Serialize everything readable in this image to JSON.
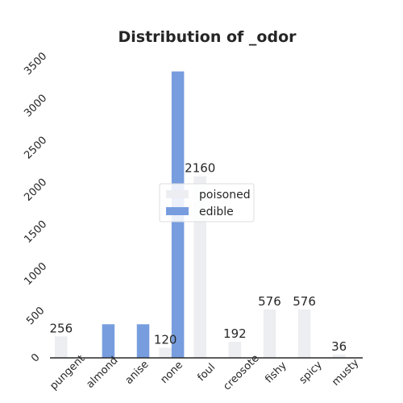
{
  "chart_data": {
    "type": "bar",
    "title": "Distribution of _odor",
    "xlabel": "",
    "ylabel": "",
    "categories": [
      "pungent",
      "almond",
      "anise",
      "none",
      "foul",
      "creosote",
      "fishy",
      "spicy",
      "musty"
    ],
    "series": [
      {
        "name": "poisoned",
        "color": "#eceef1",
        "values": [
          256,
          0,
          0,
          120,
          2160,
          192,
          576,
          576,
          36
        ],
        "labels": [
          "256",
          null,
          null,
          "120",
          "2160",
          "192",
          "576",
          "576",
          "36"
        ]
      },
      {
        "name": "edible",
        "color": "#779ddf",
        "values": [
          0,
          400,
          400,
          3408,
          0,
          0,
          0,
          0,
          0
        ],
        "labels": [
          null,
          null,
          null,
          null,
          null,
          null,
          null,
          null,
          null
        ]
      }
    ],
    "ylim": [
      0,
      3500
    ],
    "yticks": [
      0,
      500,
      1000,
      1500,
      2000,
      2500,
      3000,
      3500
    ],
    "grid": false,
    "legend_position": "center"
  }
}
